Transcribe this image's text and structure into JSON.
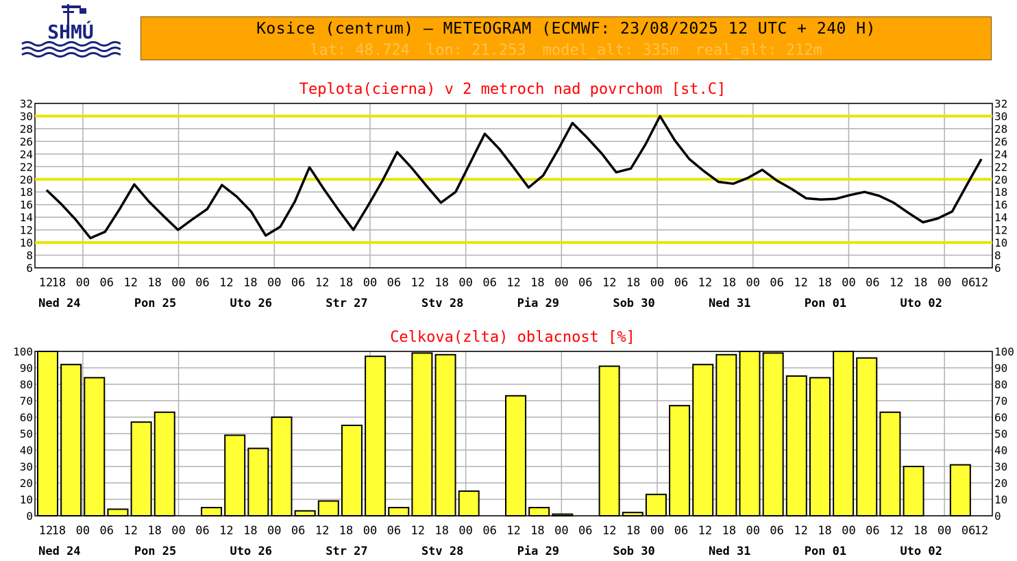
{
  "logo": {
    "text": "SHMÚ"
  },
  "header": {
    "title": "Kosice (centrum) – METEOGRAM (ECMWF: 23/08/2025 12 UTC + 240 H)",
    "lat": "lat: 48.724",
    "lon": "lon: 21.253",
    "model_alt": "model_alt: 335m",
    "real_alt": "real_alt: 212m"
  },
  "colors": {
    "header_bg": "#ffa500",
    "temp_title": "#ff0000",
    "temp_line": "#000000",
    "ref_lines": "#e6e600",
    "grid": "#b0b0b0",
    "cloud_bar": "#ffff33"
  },
  "time_labels": [
    "12",
    "18",
    "00",
    "06",
    "12",
    "18",
    "00",
    "06",
    "12",
    "18",
    "00",
    "06",
    "12",
    "18",
    "00",
    "06",
    "12",
    "18",
    "00",
    "06",
    "12",
    "18",
    "00",
    "06",
    "12",
    "18",
    "00",
    "06",
    "12",
    "18",
    "00",
    "06",
    "12",
    "18",
    "00",
    "06",
    "12",
    "18",
    "00",
    "06",
    "12"
  ],
  "day_labels": [
    "Ned 24",
    "Pon 25",
    "Uto 26",
    "Str 27",
    "Stv 28",
    "Pia 29",
    "Sob 30",
    "Ned 31",
    "Pon 01",
    "Uto 02"
  ],
  "chart_data": [
    {
      "type": "line",
      "title": "Teplota(cierna) v 2 metroch nad povrchom [st.C]",
      "ylim": [
        6,
        32
      ],
      "yticks": [
        6,
        8,
        10,
        12,
        14,
        16,
        18,
        20,
        22,
        24,
        26,
        28,
        30,
        32
      ],
      "reference_lines": [
        10,
        20,
        30
      ],
      "grid": true,
      "x_step_hours": 3,
      "series": [
        {
          "values": [
            18.3,
            16.1,
            13.6,
            10.7,
            11.7,
            15.3,
            19.2,
            16.5,
            14.2,
            12.0,
            13.7,
            15.3,
            19.1,
            17.3,
            14.9,
            11.1,
            12.5,
            16.5,
            21.9,
            18.4,
            15.1,
            12.0,
            15.8,
            19.8,
            24.3,
            21.8,
            19.0,
            16.3,
            18.0,
            22.6,
            27.2,
            24.8,
            21.8,
            18.7,
            20.6,
            24.6,
            28.9,
            26.6,
            24.1,
            21.1,
            21.7,
            25.5,
            30.0,
            26.2,
            23.2,
            21.3,
            19.6,
            19.3,
            20.2,
            21.5,
            19.8,
            18.5,
            17.0,
            16.8,
            16.9,
            17.5,
            18.0,
            17.4,
            16.3,
            14.7,
            13.2,
            13.8,
            14.9,
            19.1,
            23.2
          ]
        }
      ]
    },
    {
      "type": "bar",
      "title": "Celkova(zlta) oblacnost [%]",
      "ylim": [
        0,
        100
      ],
      "yticks": [
        0,
        10,
        20,
        30,
        40,
        50,
        60,
        70,
        80,
        90,
        100
      ],
      "grid": true,
      "x_step_hours": 6,
      "categories": [
        "12",
        "18",
        "00",
        "06",
        "12",
        "18",
        "00",
        "06",
        "12",
        "18",
        "00",
        "06",
        "12",
        "18",
        "00",
        "06",
        "12",
        "18",
        "00",
        "06",
        "12",
        "18",
        "00",
        "06",
        "12",
        "18",
        "00",
        "06",
        "12",
        "18",
        "00",
        "06",
        "12",
        "18",
        "00",
        "06",
        "12",
        "18",
        "00",
        "06"
      ],
      "values": [
        100,
        92,
        84,
        4,
        57,
        63,
        0,
        5,
        49,
        41,
        60,
        3,
        9,
        55,
        97,
        5,
        99,
        98,
        15,
        0,
        73,
        5,
        1,
        0,
        91,
        2,
        13,
        67,
        92,
        98,
        100,
        99,
        85,
        84,
        100,
        96,
        63,
        30,
        0,
        31
      ]
    }
  ]
}
